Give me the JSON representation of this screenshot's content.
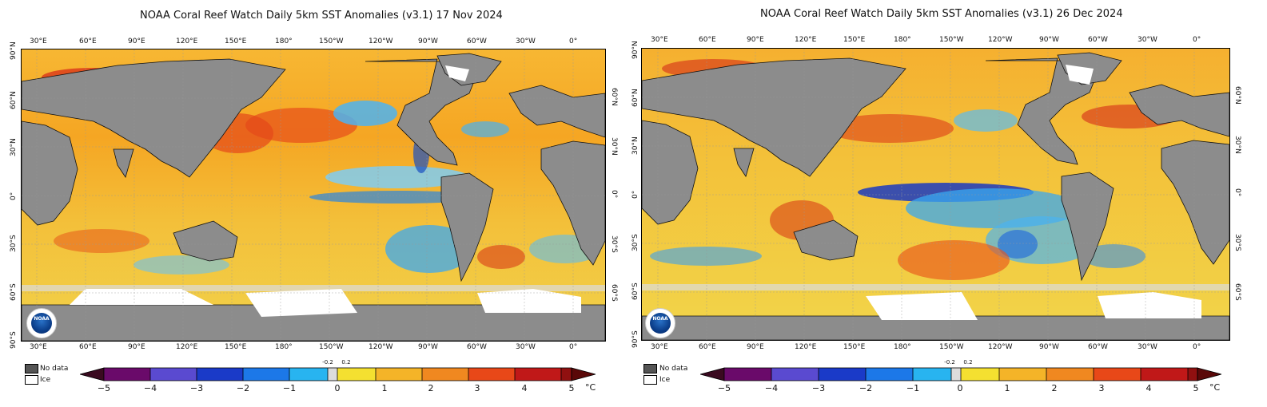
{
  "maps": [
    {
      "title": "NOAA Coral Reef Watch Daily 5km SST Anomalies  (v3.1)   17 Nov 2024",
      "logo_text": "NOAA"
    },
    {
      "title": "NOAA Coral Reef Watch Daily 5km SST Anomalies  (v3.1)   26 Dec 2024",
      "logo_text": "NOAA"
    }
  ],
  "lon_ticks": [
    "30°E",
    "60°E",
    "90°E",
    "120°E",
    "150°E",
    "180°",
    "150°W",
    "120°W",
    "90°W",
    "60°W",
    "30°W",
    "0°"
  ],
  "lat_ticks_left": [
    "90°N",
    "60°N",
    "30°N",
    "0°",
    "30°S",
    "60°S",
    "90°S"
  ],
  "lat_ticks_right": [
    "60°N",
    "30°N",
    "0°",
    "30°S",
    "60°S"
  ],
  "legend": {
    "no_data": "No data",
    "ice": "Ice"
  },
  "colorbar": {
    "ticks": [
      "−5",
      "−4",
      "−3",
      "−2",
      "−1",
      "0",
      "1",
      "2",
      "3",
      "4",
      "5"
    ],
    "small_ticks": [
      "-0.2",
      "0.2"
    ],
    "unit": "°C"
  },
  "colors": {
    "land": "#8c8c8c",
    "ice": "#ffffff",
    "warm": "#f0a020",
    "cool": "#3aa8f0"
  }
}
